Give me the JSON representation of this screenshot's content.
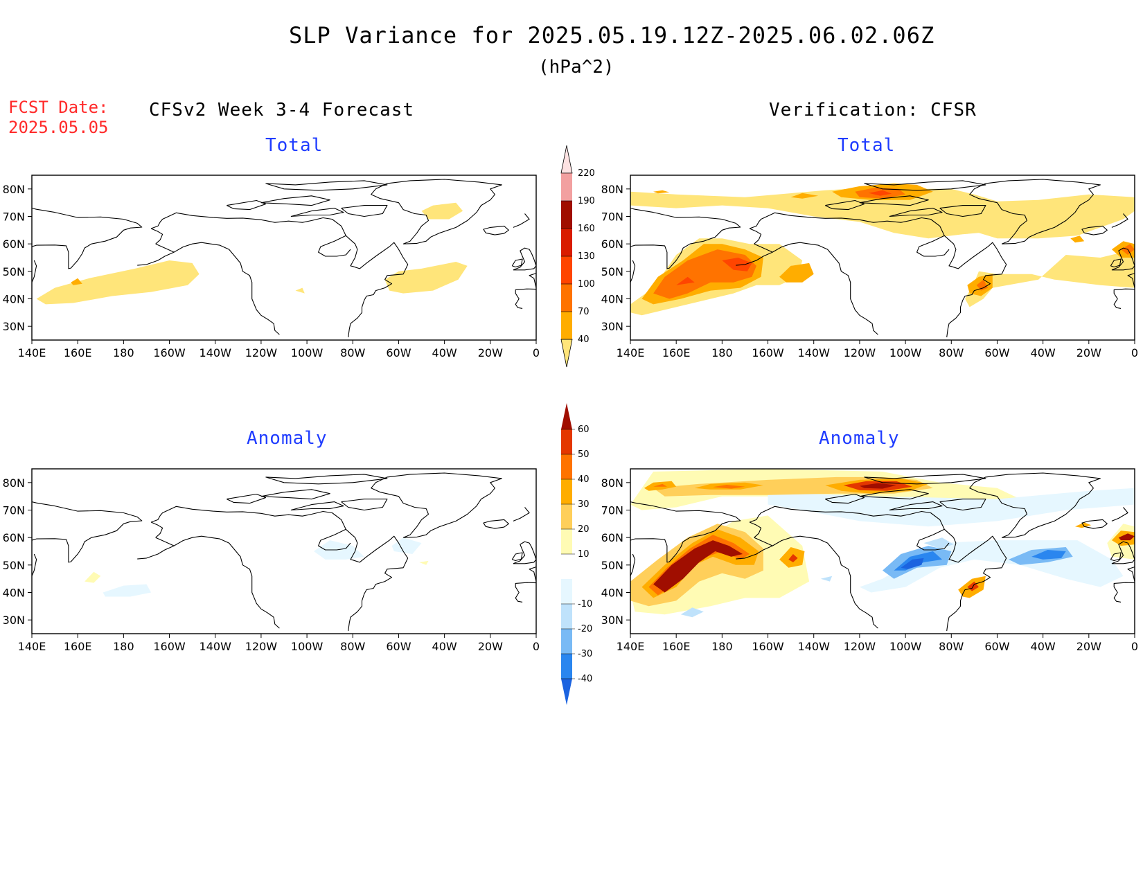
{
  "header": {
    "title": "SLP Variance for 2025.05.19.12Z-2025.06.02.06Z",
    "units": "(hPa^2)",
    "fcst_label": "FCST Date:",
    "fcst_date": "2025.05.05",
    "left_column": "CFSv2 Week 3-4 Forecast",
    "right_column": "Verification: CFSR"
  },
  "panels": {
    "forecast_total": {
      "title": "Total"
    },
    "verif_total": {
      "title": "Total"
    },
    "forecast_anom": {
      "title": "Anomaly"
    },
    "verif_anom": {
      "title": "Anomaly"
    }
  },
  "axes": {
    "lat_labels": [
      "80N",
      "70N",
      "60N",
      "50N",
      "40N",
      "30N"
    ],
    "lon_labels": [
      "140E",
      "160E",
      "180",
      "160W",
      "140W",
      "120W",
      "100W",
      "80W",
      "60W",
      "40W",
      "20W",
      "0"
    ],
    "lat_range": [
      25,
      85
    ],
    "lon_range_deg_east": [
      140,
      360
    ]
  },
  "colorbars": {
    "total": {
      "labels": [
        "40",
        "70",
        "100",
        "130",
        "160",
        "190",
        "220"
      ],
      "colors": [
        "#ffe57a",
        "#ffad00",
        "#ff7300",
        "#ff4500",
        "#d91c00",
        "#a00e00",
        "#f2a0a0",
        "#fde2e2"
      ]
    },
    "anomaly": {
      "labels": [
        "-40",
        "-30",
        "-20",
        "-10",
        "10",
        "20",
        "30",
        "40",
        "50",
        "60"
      ],
      "colors": [
        "#1b63e0",
        "#2a86ef",
        "#79baf5",
        "#bfe2fb",
        "#e6f7ff",
        "#ffffff",
        "#fffbb4",
        "#ffcf5a",
        "#ffad00",
        "#ff7300",
        "#e43700",
        "#a00e00"
      ]
    }
  }
}
